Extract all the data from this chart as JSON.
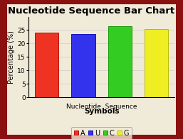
{
  "title": "Nucleotide Sequence Bar Chart",
  "categories": [
    "A",
    "U",
    "C",
    "G"
  ],
  "values": [
    24.0,
    23.5,
    26.5,
    25.5
  ],
  "bar_colors": [
    "#ee3322",
    "#3333ee",
    "#33cc22",
    "#eeee22"
  ],
  "bar_edgecolors": [
    "#bb1100",
    "#1111bb",
    "#119900",
    "#bbbb00"
  ],
  "group_label": "Nucleotide  Sequence",
  "xlabel": "Symbols",
  "ylabel": "Percentage (%)",
  "ylim": [
    0,
    30
  ],
  "yticks": [
    0,
    5,
    10,
    15,
    20,
    25
  ],
  "background_color": "#f0ead8",
  "outer_bg": "#8b1010",
  "title_fontsize": 9.5,
  "axis_fontsize": 7,
  "legend_fontsize": 7,
  "tick_fontsize": 6.5
}
